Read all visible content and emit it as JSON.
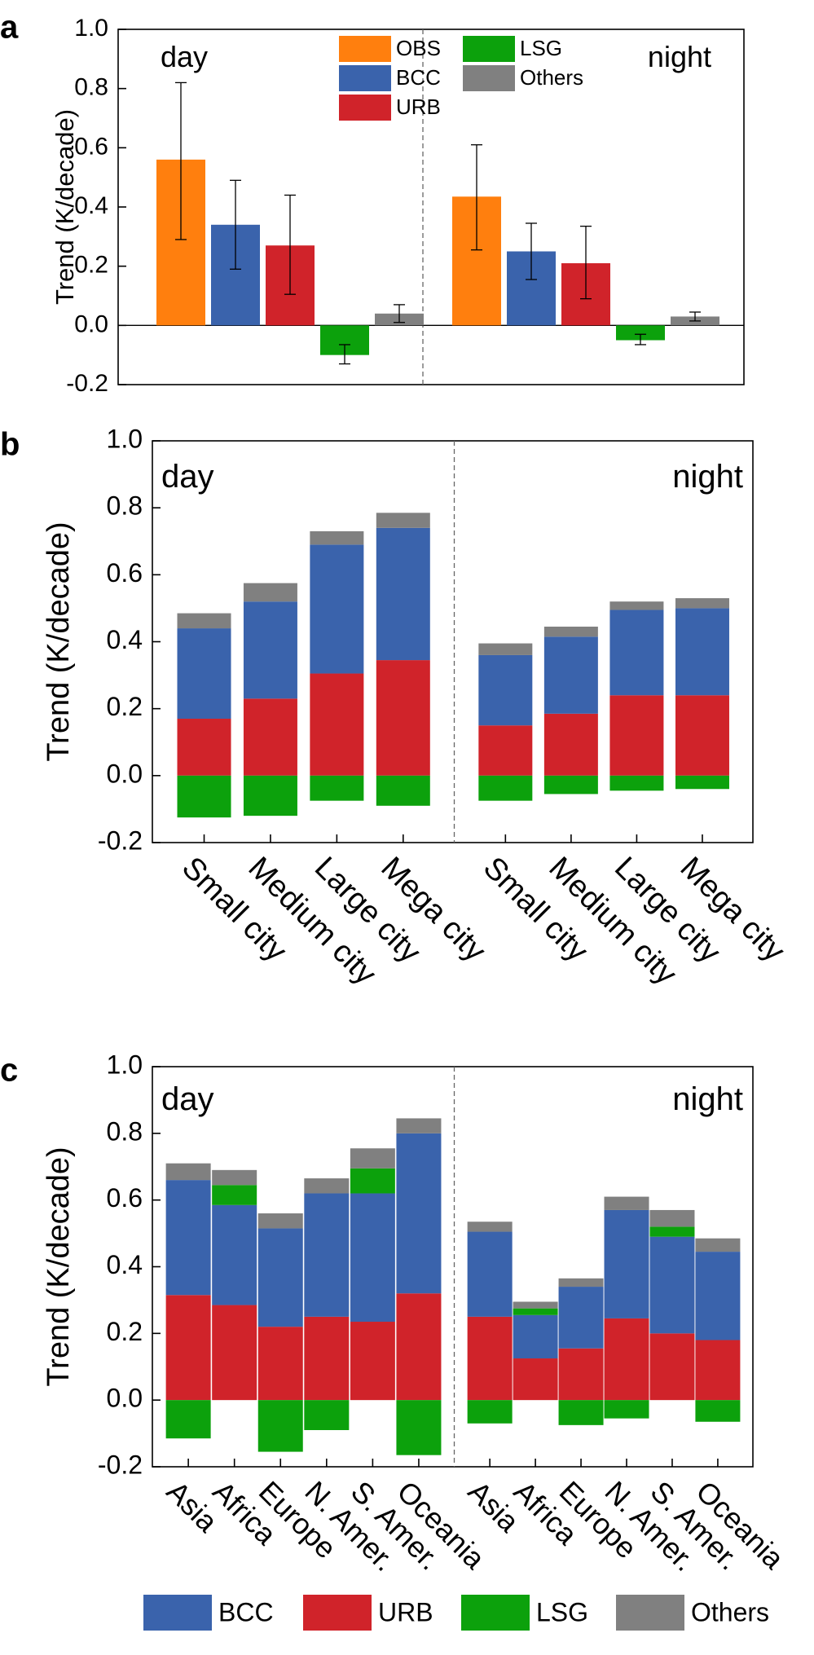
{
  "colors": {
    "OBS": "#ff7f0e",
    "BCC": "#3a63ac",
    "URB": "#d0232a",
    "LSG": "#0ca10c",
    "Others": "#808080"
  },
  "chart_data": [
    {
      "panel": "a",
      "type": "bar",
      "ylabel": "Trend (K/decade)",
      "ylim": [
        -0.2,
        1.0
      ],
      "yticks": [
        "-0.2",
        "0.0",
        "0.2",
        "0.4",
        "0.6",
        "0.8",
        "1.0"
      ],
      "legend": [
        "OBS",
        "BCC",
        "URB",
        "LSG",
        "Others"
      ],
      "groups": [
        {
          "label": "day",
          "bars": [
            {
              "series": "OBS",
              "value": 0.56,
              "err_low": 0.29,
              "err_high": 0.82
            },
            {
              "series": "BCC",
              "value": 0.34,
              "err_low": 0.19,
              "err_high": 0.49
            },
            {
              "series": "URB",
              "value": 0.27,
              "err_low": 0.105,
              "err_high": 0.44
            },
            {
              "series": "LSG",
              "value": -0.1,
              "err_low": -0.13,
              "err_high": -0.065
            },
            {
              "series": "Others",
              "value": 0.04,
              "err_low": 0.01,
              "err_high": 0.07
            }
          ]
        },
        {
          "label": "night",
          "bars": [
            {
              "series": "OBS",
              "value": 0.435,
              "err_low": 0.255,
              "err_high": 0.61
            },
            {
              "series": "BCC",
              "value": 0.25,
              "err_low": 0.155,
              "err_high": 0.345
            },
            {
              "series": "URB",
              "value": 0.21,
              "err_low": 0.09,
              "err_high": 0.335
            },
            {
              "series": "LSG",
              "value": -0.05,
              "err_low": -0.065,
              "err_high": -0.03
            },
            {
              "series": "Others",
              "value": 0.03,
              "err_low": 0.015,
              "err_high": 0.045
            }
          ]
        }
      ]
    },
    {
      "panel": "b",
      "type": "stacked-bar",
      "ylabel": "Trend (K/decade)",
      "ylim": [
        -0.2,
        1.0
      ],
      "yticks": [
        "-0.2",
        "0.0",
        "0.2",
        "0.4",
        "0.6",
        "0.8",
        "1.0"
      ],
      "series_order": [
        "URB",
        "BCC",
        "Others",
        "LSG"
      ],
      "groups": [
        {
          "label": "day",
          "categories": [
            "Small city",
            "Medium city",
            "Large city",
            "Mega city"
          ],
          "values": {
            "URB": [
              0.17,
              0.23,
              0.305,
              0.345
            ],
            "BCC": [
              0.27,
              0.29,
              0.385,
              0.395
            ],
            "Others": [
              0.045,
              0.055,
              0.04,
              0.045
            ],
            "LSG": [
              -0.125,
              -0.12,
              -0.075,
              -0.09
            ]
          }
        },
        {
          "label": "night",
          "categories": [
            "Small city",
            "Medium city",
            "Large city",
            "Mega city"
          ],
          "values": {
            "URB": [
              0.15,
              0.185,
              0.24,
              0.24
            ],
            "BCC": [
              0.21,
              0.23,
              0.255,
              0.26
            ],
            "Others": [
              0.035,
              0.03,
              0.025,
              0.03
            ],
            "LSG": [
              -0.075,
              -0.055,
              -0.045,
              -0.04
            ]
          }
        }
      ]
    },
    {
      "panel": "c",
      "type": "stacked-bar",
      "ylabel": "Trend (K/decade)",
      "ylim": [
        -0.2,
        1.0
      ],
      "yticks": [
        "-0.2",
        "0.0",
        "0.2",
        "0.4",
        "0.6",
        "0.8",
        "1.0"
      ],
      "series_order": [
        "URB",
        "BCC",
        "LSG",
        "Others"
      ],
      "groups": [
        {
          "label": "day",
          "categories": [
            "Asia",
            "Africa",
            "Europe",
            "N. Amer.",
            "S. Amer.",
            "Oceania"
          ],
          "values": {
            "URB": [
              0.315,
              0.285,
              0.22,
              0.25,
              0.235,
              0.32
            ],
            "BCC": [
              0.345,
              0.3,
              0.295,
              0.37,
              0.385,
              0.48
            ],
            "LSG": [
              -0.115,
              0.06,
              -0.155,
              -0.09,
              0.075,
              -0.165
            ],
            "Others": [
              0.05,
              0.045,
              0.045,
              0.045,
              0.06,
              0.045
            ]
          }
        },
        {
          "label": "night",
          "categories": [
            "Asia",
            "Africa",
            "Europe",
            "N. Amer.",
            "S. Amer.",
            "Oceania"
          ],
          "values": {
            "URB": [
              0.25,
              0.125,
              0.155,
              0.245,
              0.2,
              0.18
            ],
            "BCC": [
              0.255,
              0.13,
              0.185,
              0.325,
              0.29,
              0.265
            ],
            "LSG": [
              -0.07,
              0.02,
              -0.075,
              -0.055,
              0.03,
              -0.065
            ],
            "Others": [
              0.03,
              0.02,
              0.025,
              0.04,
              0.05,
              0.04
            ]
          }
        }
      ]
    }
  ],
  "bottom_legend": [
    "BCC",
    "URB",
    "LSG",
    "Others"
  ]
}
